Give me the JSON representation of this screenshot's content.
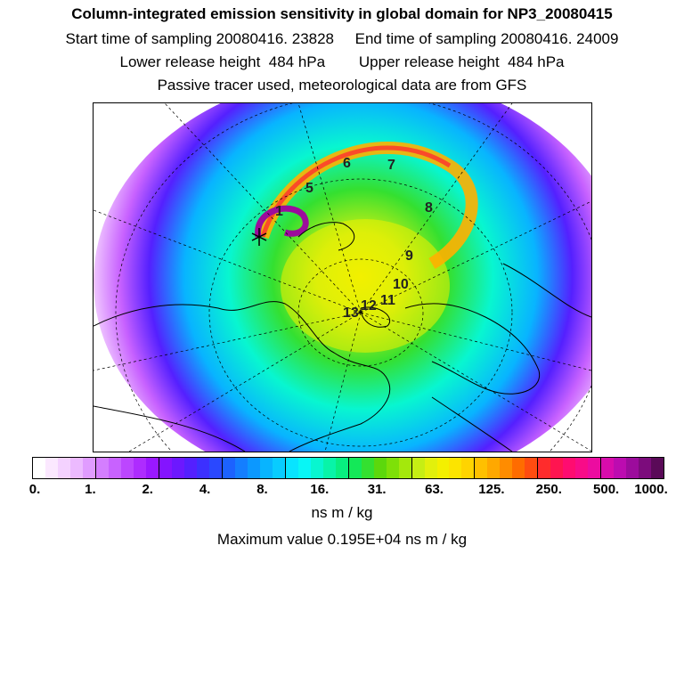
{
  "header": {
    "title": "Column-integrated emission sensitivity in global domain for NP3_20080415",
    "sampling": "Start time of sampling 20080416. 23828     End time of sampling 20080416. 24009",
    "release": "Lower release height  484 hPa        Upper release height  484 hPa",
    "note": "Passive tracer used, meteorological data are from GFS"
  },
  "map": {
    "projection": "north-polar stereographic",
    "trajectory_labels": [
      "1",
      "5",
      "6",
      "7",
      "8",
      "9",
      "10",
      "11",
      "12",
      "13"
    ],
    "release_marker": "star"
  },
  "colorbar": {
    "colors": [
      "#ffffff",
      "#fbe8ff",
      "#f4d2ff",
      "#ecbaff",
      "#e09cff",
      "#d47eff",
      "#c862ff",
      "#bc46ff",
      "#ae2cff",
      "#9a18ff",
      "#8414ff",
      "#6c18ff",
      "#5420ff",
      "#3c30ff",
      "#2a48ff",
      "#1c62ff",
      "#147eff",
      "#0c98ff",
      "#08b4ff",
      "#08ccff",
      "#08e4ff",
      "#08f6f6",
      "#08f6d0",
      "#08f4a8",
      "#08ee80",
      "#14e858",
      "#34e030",
      "#5cd80c",
      "#7ee008",
      "#a4e80c",
      "#c6ee14",
      "#e2f00c",
      "#f4f000",
      "#fce400",
      "#ffd400",
      "#ffc000",
      "#ffa800",
      "#ff8c00",
      "#ff6c00",
      "#ff4c10",
      "#ff2c2c",
      "#ff1450",
      "#ff0c70",
      "#f80c88",
      "#ec0ca0",
      "#d80cac",
      "#bc0cb0",
      "#9c0c9c",
      "#7c0c7c",
      "#5a0a58"
    ],
    "tick_labels": [
      "0.",
      "1.",
      "2.",
      "4.",
      "8.",
      "16.",
      "31.",
      "63.",
      "125.",
      "250.",
      "500.",
      "1000."
    ],
    "units": "ns m / kg"
  },
  "footer": {
    "max_value": "Maximum value  0.195E+04 ns m / kg"
  }
}
